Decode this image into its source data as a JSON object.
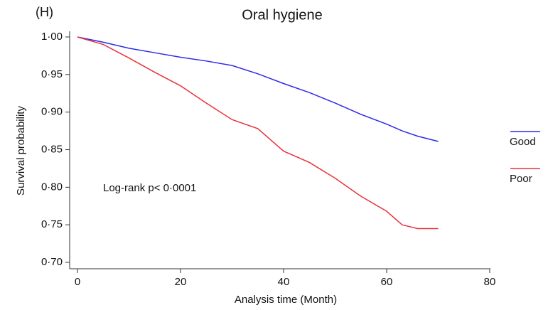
{
  "chart_data": {
    "type": "line",
    "panel_label": "(H)",
    "title": "Oral hygiene",
    "x_label": "Analysis time (Month)",
    "y_label": "Survival probability",
    "annotation": "Log-rank p< 0·0001",
    "x": [
      0,
      5,
      10,
      15,
      20,
      25,
      30,
      35,
      40,
      45,
      50,
      55,
      60,
      63,
      66,
      70
    ],
    "series": [
      {
        "name": "Good",
        "color": "#2b2bea",
        "values": [
          1.0,
          0.993,
          0.985,
          0.979,
          0.973,
          0.968,
          0.962,
          0.951,
          0.938,
          0.926,
          0.912,
          0.897,
          0.884,
          0.875,
          0.868,
          0.861
        ]
      },
      {
        "name": "Poor",
        "color": "#e8323c",
        "values": [
          1.0,
          0.99,
          0.972,
          0.953,
          0.935,
          0.912,
          0.89,
          0.878,
          0.848,
          0.833,
          0.812,
          0.788,
          0.768,
          0.75,
          0.745,
          0.745
        ]
      }
    ],
    "xlim": [
      0,
      80
    ],
    "xticks": [
      0,
      20,
      40,
      60,
      80
    ],
    "ylim": [
      0.7,
      1.0
    ],
    "yticks": [
      {
        "value": 0.7,
        "label": "0·70"
      },
      {
        "value": 0.75,
        "label": "0·75"
      },
      {
        "value": 0.8,
        "label": "0·80"
      },
      {
        "value": 0.85,
        "label": "0·85"
      },
      {
        "value": 0.9,
        "label": "0·90"
      },
      {
        "value": 0.95,
        "label": "0·95"
      },
      {
        "value": 1.0,
        "label": "1·00"
      }
    ],
    "legend_position": "right"
  }
}
